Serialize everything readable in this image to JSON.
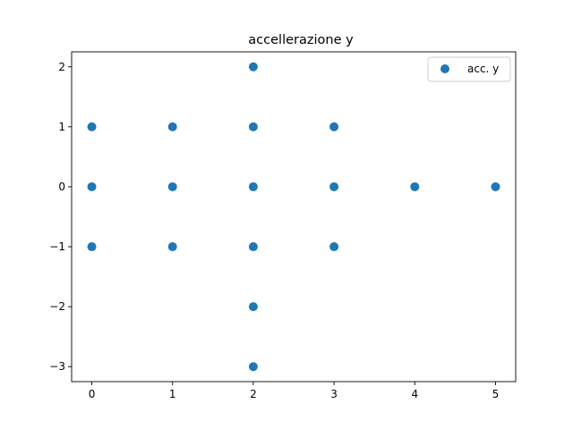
{
  "chart_data": {
    "type": "scatter",
    "title": "accellerazione y",
    "xlabel": "",
    "ylabel": "",
    "xlim": [
      -0.25,
      5.25
    ],
    "ylim": [
      -3.25,
      2.25
    ],
    "xticks": [
      "0",
      "1",
      "2",
      "3",
      "4",
      "5"
    ],
    "yticks": [
      "2",
      "1",
      "0",
      "−1",
      "−2",
      "−3"
    ],
    "grid": false,
    "legend_position": "top-right",
    "series": [
      {
        "name": "acc. y",
        "color": "#1f77b4",
        "points": [
          {
            "x": 0,
            "y": 1
          },
          {
            "x": 0,
            "y": 0
          },
          {
            "x": 0,
            "y": -1
          },
          {
            "x": 1,
            "y": 1
          },
          {
            "x": 1,
            "y": 0
          },
          {
            "x": 1,
            "y": -1
          },
          {
            "x": 2,
            "y": 2
          },
          {
            "x": 2,
            "y": 1
          },
          {
            "x": 2,
            "y": 0
          },
          {
            "x": 2,
            "y": -1
          },
          {
            "x": 2,
            "y": -2
          },
          {
            "x": 2,
            "y": -3
          },
          {
            "x": 3,
            "y": 1
          },
          {
            "x": 3,
            "y": 0
          },
          {
            "x": 3,
            "y": -1
          },
          {
            "x": 4,
            "y": 0
          },
          {
            "x": 5,
            "y": 0
          }
        ]
      }
    ]
  }
}
